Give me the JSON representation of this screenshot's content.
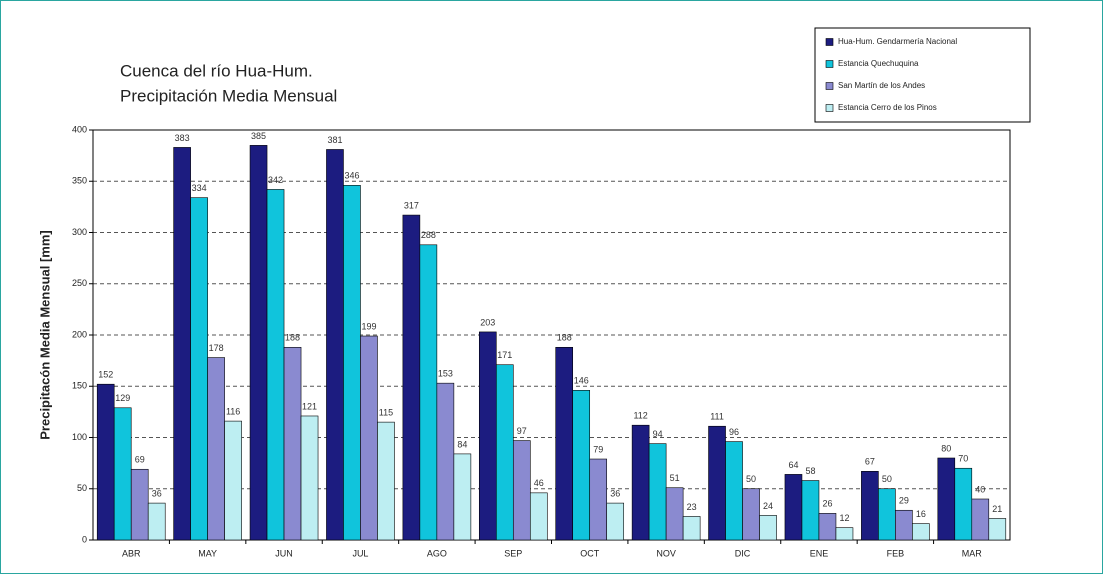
{
  "chart_data": {
    "type": "bar",
    "title": [
      "Cuenca del río Hua-Hum.",
      "Precipitación Media Mensual"
    ],
    "y_label": "Precipitacón Media Mensual [mm]",
    "categories": [
      "ABR",
      "MAY",
      "JUN",
      "JUL",
      "AGO",
      "SEP",
      "OCT",
      "NOV",
      "DIC",
      "ENE",
      "FEB",
      "MAR"
    ],
    "series": [
      {
        "name": "Hua-Hum. Gendarmería Nacional",
        "color": "#1c1c80",
        "values": [
          152,
          383,
          385,
          381,
          317,
          203,
          188,
          112,
          111,
          64,
          67,
          80
        ]
      },
      {
        "name": "Estancia Quechuquina",
        "color": "#10c4dc",
        "values": [
          129,
          334,
          342,
          346,
          288,
          171,
          146,
          94,
          96,
          58,
          50,
          70
        ]
      },
      {
        "name": "San Martín de los Andes",
        "color": "#8a8ad0",
        "values": [
          69,
          178,
          188,
          199,
          153,
          97,
          79,
          51,
          50,
          26,
          29,
          40
        ]
      },
      {
        "name": "Estancia Cerro de los Pinos",
        "color": "#bdeef2",
        "values": [
          36,
          116,
          121,
          115,
          84,
          46,
          36,
          23,
          24,
          12,
          16,
          21
        ]
      }
    ],
    "ylim": [
      0,
      400
    ],
    "yticks": [
      0,
      50,
      100,
      150,
      200,
      250,
      300,
      350,
      400
    ],
    "grid": true
  }
}
